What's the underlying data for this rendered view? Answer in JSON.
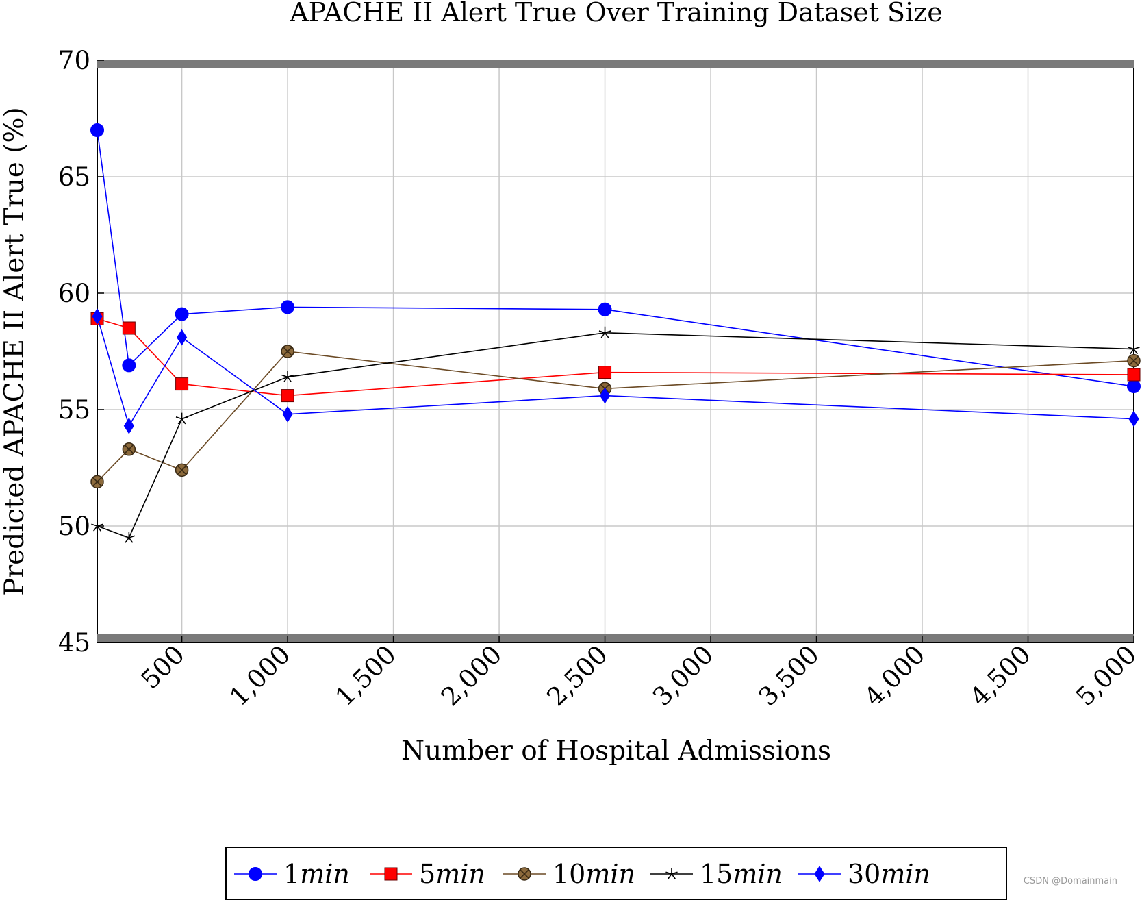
{
  "chart_data": {
    "type": "line",
    "title": "APACHE II Alert True Over Training Dataset Size",
    "xlabel": "Number of Hospital Admissions",
    "ylabel": "Predicted APACHE II Alert True (%)",
    "xlim": [
      100,
      5000
    ],
    "ylim": [
      45,
      70
    ],
    "xticks": [
      500,
      1000,
      1500,
      2000,
      2500,
      3000,
      3500,
      4000,
      4500,
      5000
    ],
    "xtick_labels": [
      "500",
      "1,000",
      "1,500",
      "2,000",
      "2,500",
      "3,000",
      "3,500",
      "4,000",
      "4,500",
      "5,000"
    ],
    "yticks": [
      45,
      50,
      55,
      60,
      65,
      70
    ],
    "ytick_labels": [
      "45",
      "50",
      "55",
      "60",
      "65",
      "70"
    ],
    "grid": true,
    "legend_position": "bottom-center",
    "series": [
      {
        "name": "1min",
        "color": "#0000ff",
        "marker": "circle",
        "x": [
          100,
          250,
          500,
          1000,
          2500,
          5000
        ],
        "y": [
          67.0,
          56.9,
          59.1,
          59.4,
          59.3,
          56.0
        ]
      },
      {
        "name": "5min",
        "color": "#ff0000",
        "marker": "square",
        "x": [
          100,
          250,
          500,
          1000,
          2500,
          5000
        ],
        "y": [
          58.9,
          58.5,
          56.1,
          55.6,
          56.6,
          56.5
        ]
      },
      {
        "name": "10min",
        "color": "#6b4a25",
        "marker": "otimes",
        "x": [
          100,
          250,
          500,
          1000,
          2500,
          5000
        ],
        "y": [
          51.9,
          53.3,
          52.4,
          57.5,
          55.9,
          57.1
        ]
      },
      {
        "name": "15min",
        "color": "#000000",
        "marker": "star",
        "x": [
          100,
          250,
          500,
          1000,
          2500,
          5000
        ],
        "y": [
          50.0,
          49.5,
          54.6,
          56.4,
          58.3,
          57.6
        ]
      },
      {
        "name": "30min",
        "color": "#0000ff",
        "marker": "diamond",
        "x": [
          100,
          250,
          500,
          1000,
          2500,
          5000
        ],
        "y": [
          59.0,
          54.3,
          58.1,
          54.8,
          55.6,
          54.6
        ]
      }
    ]
  },
  "watermark": "CSDN @Domainmain"
}
